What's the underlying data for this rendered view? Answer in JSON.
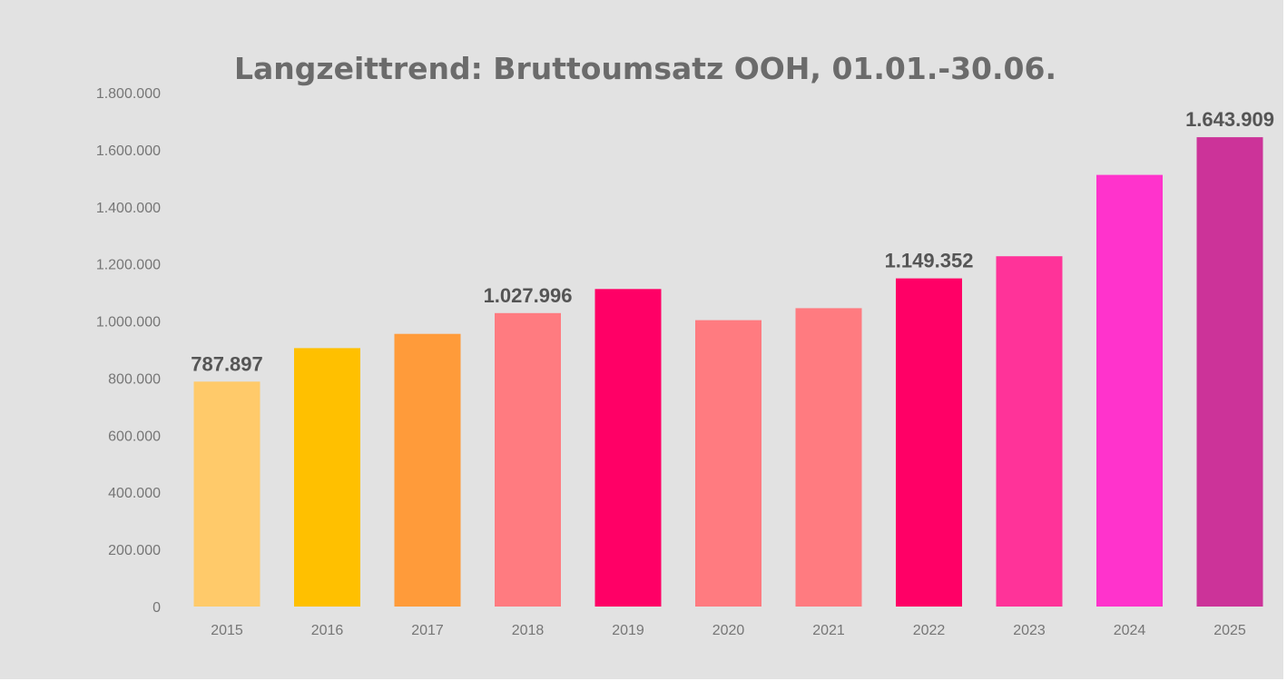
{
  "chart_data": {
    "type": "bar",
    "title": "Langzeittrend: Bruttoumsatz OOH, 01.01.-30.06.",
    "xlabel": "",
    "ylabel": "",
    "categories": [
      "2015",
      "2016",
      "2017",
      "2018",
      "2019",
      "2020",
      "2021",
      "2022",
      "2023",
      "2024",
      "2025"
    ],
    "values": [
      787897,
      905000,
      955000,
      1027996,
      1112000,
      1003000,
      1045000,
      1149352,
      1227000,
      1512000,
      1643909
    ],
    "colors": [
      "#ffca6a",
      "#ffc000",
      "#ff9b3a",
      "#ff7b80",
      "#ff0066",
      "#ff7b80",
      "#ff7b80",
      "#ff0066",
      "#ff3399",
      "#ff33cc",
      "#cc3399"
    ],
    "data_labels": [
      {
        "category": "2015",
        "text": "787.897"
      },
      {
        "category": "2018",
        "text": "1.027.996"
      },
      {
        "category": "2022",
        "text": "1.149.352"
      },
      {
        "category": "2025",
        "text": "1.643.909"
      }
    ],
    "ylim": [
      0,
      1800000
    ],
    "yticks": [
      0,
      200000,
      400000,
      600000,
      800000,
      1000000,
      1200000,
      1400000,
      1600000,
      1800000
    ],
    "ytick_labels": [
      "0",
      "200.000",
      "400.000",
      "600.000",
      "800.000",
      "1.000.000",
      "1.200.000",
      "1.400.000",
      "1.600.000",
      "1.800.000"
    ],
    "grid": false,
    "legend": "none",
    "background": "#e2e2e2"
  }
}
